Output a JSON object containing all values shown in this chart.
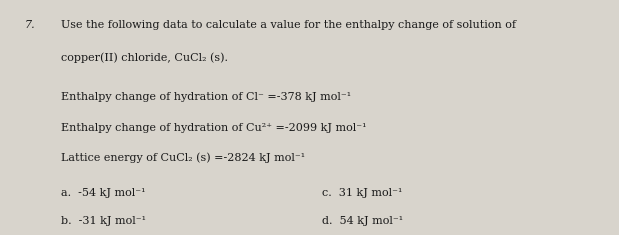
{
  "background_color": "#d8d4cc",
  "question_number": "7.",
  "question_text": "Use the following data to calculate a value for the enthalpy change of solution of",
  "question_text2": "copper(II) chloride, CuCl₂ (s).",
  "line1_label": "Enthalpy change of hydration of Cl⁻ =-378 kJ mol⁻¹",
  "line2_label": "Enthalpy change of hydration of Cu²⁺ =-2099 kJ mol⁻¹",
  "line3_label": "Lattice energy of CuCl₂ (s) =-2824 kJ mol⁻¹",
  "answer_a": "a.  -54 kJ mol⁻¹",
  "answer_b": "b.  -31 kJ mol⁻¹",
  "answer_c": "c.  31 kJ mol⁻¹",
  "answer_d": "d.  54 kJ mol⁻¹",
  "font_color": "#1a1a1a",
  "font_size_main": 8.0,
  "font_size_answers": 8.0
}
